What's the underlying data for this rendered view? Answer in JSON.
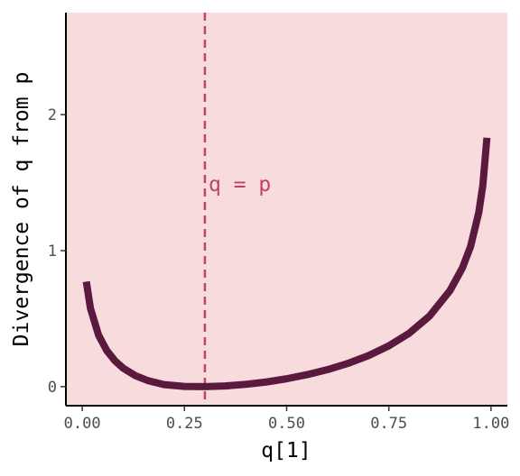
{
  "chart_data": {
    "type": "line",
    "title": "",
    "xlabel": "q[1]",
    "ylabel": "Divergence of q from p",
    "xlim": [
      -0.04,
      1.04
    ],
    "ylim": [
      -0.14,
      2.75
    ],
    "xticks": [
      0.0,
      0.25,
      0.5,
      0.75,
      1.0
    ],
    "xtick_labels": [
      "0.00",
      "0.25",
      "0.50",
      "0.75",
      "1.00"
    ],
    "yticks": [
      0,
      1,
      2
    ],
    "ytick_labels": [
      "0",
      "1",
      "2"
    ],
    "grid": false,
    "legend": "none",
    "series": [
      {
        "x": [
          0.01,
          0.02,
          0.04,
          0.06,
          0.08,
          0.1,
          0.13,
          0.16,
          0.2,
          0.25,
          0.3,
          0.35,
          0.4,
          0.45,
          0.5,
          0.55,
          0.6,
          0.65,
          0.7,
          0.75,
          0.8,
          0.85,
          0.9,
          0.93,
          0.95,
          0.97,
          0.98,
          0.99
        ],
        "y": [
          0.772,
          0.576,
          0.378,
          0.265,
          0.19,
          0.136,
          0.081,
          0.045,
          0.015,
          0.002,
          0.0,
          0.005,
          0.017,
          0.034,
          0.058,
          0.088,
          0.125,
          0.171,
          0.228,
          0.3,
          0.393,
          0.52,
          0.708,
          0.873,
          1.03,
          1.28,
          1.48,
          1.83
        ]
      }
    ],
    "vline": {
      "x": 0.3,
      "label": "q = p"
    }
  },
  "colors": {
    "panel_bg": "#f8dbdd",
    "curve": "#5a1a3e",
    "vline": "#c04460",
    "axis": "#000000"
  }
}
